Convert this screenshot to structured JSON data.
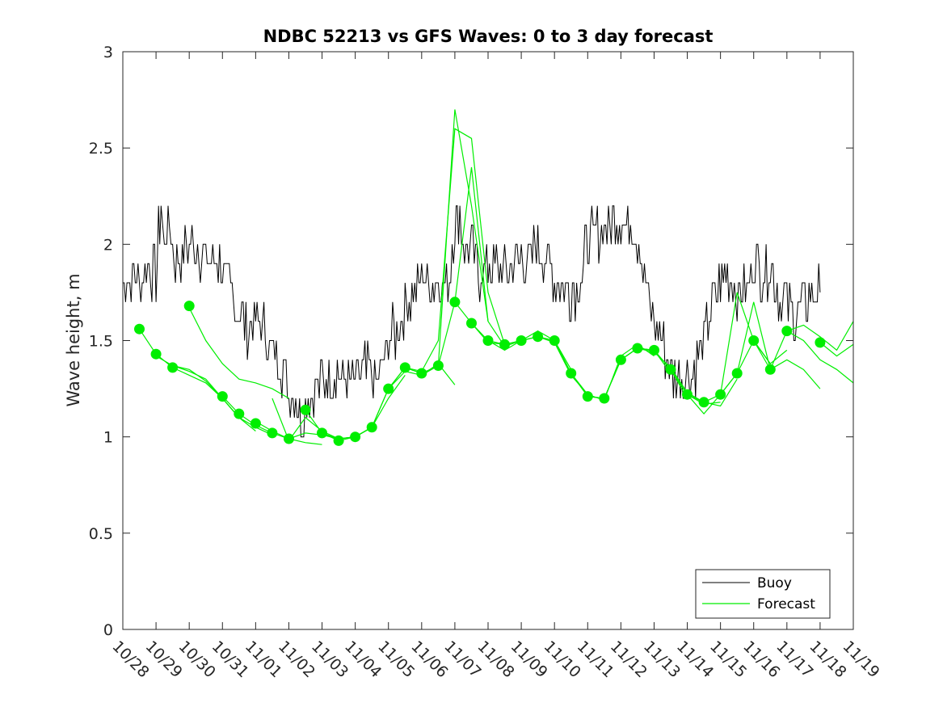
{
  "chart_data": {
    "type": "line",
    "title": "NDBC 52213 vs GFS Waves: 0 to 3 day forecast",
    "xlabel": "",
    "ylabel": "Wave height, m",
    "ylim": [
      0,
      3
    ],
    "yticks": [
      0,
      0.5,
      1,
      1.5,
      2,
      2.5,
      3
    ],
    "ytick_labels": [
      "0",
      "0.5",
      "1",
      "1.5",
      "2",
      "2.5",
      "3"
    ],
    "xlim": [
      0,
      22
    ],
    "xticks": [
      0,
      1,
      2,
      3,
      4,
      5,
      6,
      7,
      8,
      9,
      10,
      11,
      12,
      13,
      14,
      15,
      16,
      17,
      18,
      19,
      20,
      21,
      22
    ],
    "xtick_labels": [
      "10/28",
      "10/29",
      "10/30",
      "10/31",
      "11/01",
      "11/02",
      "11/03",
      "11/04",
      "11/05",
      "11/06",
      "11/07",
      "11/08",
      "11/09",
      "11/10",
      "11/11",
      "11/12",
      "11/13",
      "11/14",
      "11/15",
      "11/16",
      "11/17",
      "11/18",
      "11/19"
    ],
    "legend": {
      "position": "bottom-right",
      "entries": [
        "Buoy",
        "Forecast"
      ]
    },
    "colors": {
      "buoy": "#000000",
      "forecast": "#00ee00",
      "axis": "#262626"
    },
    "series": [
      {
        "name": "Buoy",
        "x": [
          0,
          0.25,
          0.5,
          0.75,
          1.0,
          1.15,
          1.25,
          1.4,
          1.5,
          1.75,
          2.0,
          2.25,
          2.5,
          2.75,
          3.0,
          3.25,
          3.5,
          3.75,
          4.0,
          4.25,
          4.5,
          4.75,
          5.0,
          5.25,
          5.4,
          5.5,
          5.75,
          6.0,
          6.25,
          6.5,
          6.75,
          7.0,
          7.25,
          7.5,
          7.75,
          8.0,
          8.25,
          8.5,
          8.75,
          9.0,
          9.25,
          9.5,
          9.75,
          10.0,
          10.15,
          10.25,
          10.5,
          10.75,
          11.0,
          11.25,
          11.5,
          11.75,
          12.0,
          12.25,
          12.5,
          12.75,
          13.0,
          13.25,
          13.5,
          13.75,
          14.0,
          14.25,
          14.5,
          14.75,
          15.0,
          15.25,
          15.5,
          15.75,
          16.0,
          16.25,
          16.5,
          16.75,
          17.0,
          17.25,
          17.5,
          17.75,
          18.0,
          18.25,
          18.5,
          18.75,
          19.0,
          19.25,
          19.5,
          19.75,
          20.0,
          20.25,
          20.5,
          20.75,
          21.0
        ],
        "values": [
          1.8,
          1.85,
          1.8,
          1.9,
          1.85,
          2.2,
          2.0,
          2.1,
          1.95,
          1.9,
          2.0,
          2.0,
          1.9,
          1.95,
          1.85,
          1.75,
          1.65,
          1.55,
          1.6,
          1.55,
          1.45,
          1.4,
          1.25,
          1.2,
          1.1,
          1.2,
          1.25,
          1.3,
          1.3,
          1.35,
          1.3,
          1.3,
          1.35,
          1.3,
          1.3,
          1.5,
          1.55,
          1.65,
          1.75,
          1.85,
          1.8,
          1.8,
          1.75,
          2.1,
          2.2,
          2.0,
          1.95,
          1.85,
          1.9,
          1.9,
          1.85,
          1.9,
          1.95,
          1.9,
          2.0,
          1.9,
          1.85,
          1.8,
          1.75,
          1.8,
          2.0,
          2.05,
          2.1,
          2.1,
          2.15,
          2.1,
          2.05,
          1.8,
          1.6,
          1.5,
          1.35,
          1.3,
          1.3,
          1.35,
          1.5,
          1.7,
          1.8,
          1.85,
          1.7,
          1.75,
          1.9,
          1.85,
          1.9,
          1.75,
          1.7,
          1.65,
          1.7,
          1.75,
          1.75
        ]
      },
      {
        "name": "Forecast",
        "lines": [
          {
            "x": [
              0.5,
              1,
              1.5,
              2,
              2.5,
              3,
              3.5
            ],
            "values": [
              1.56,
              1.43,
              1.36,
              1.32,
              1.28,
              1.2,
              1.1
            ]
          },
          {
            "x": [
              1,
              1.5,
              2,
              2.5,
              3,
              3.5,
              4
            ],
            "values": [
              1.42,
              1.37,
              1.35,
              1.29,
              1.2,
              1.1,
              1.03
            ]
          },
          {
            "x": [
              1.5,
              2,
              2.5,
              3,
              3.5,
              4,
              4.5
            ],
            "values": [
              1.37,
              1.34,
              1.3,
              1.2,
              1.1,
              1.05,
              1.01
            ]
          },
          {
            "x": [
              2,
              2.5,
              3,
              3.5,
              4,
              4.5,
              5
            ],
            "values": [
              1.67,
              1.5,
              1.38,
              1.3,
              1.28,
              1.25,
              1.2
            ]
          },
          {
            "x": [
              3,
              3.5,
              4,
              4.5,
              5,
              5.5,
              6
            ],
            "values": [
              1.21,
              1.12,
              1.06,
              1.02,
              0.99,
              0.97,
              0.96
            ]
          },
          {
            "x": [
              4,
              4.5,
              5,
              5.5,
              6,
              6.5,
              7
            ],
            "values": [
              1.08,
              1.03,
              0.99,
              1.02,
              1.01,
              0.99,
              1.0
            ]
          },
          {
            "x": [
              4.5,
              5,
              5.5,
              6,
              6.5,
              7,
              7.5
            ],
            "values": [
              1.2,
              0.98,
              1.1,
              1.03,
              0.99,
              1.0,
              1.05
            ]
          },
          {
            "x": [
              5.5,
              6,
              6.5,
              7,
              7.5,
              8,
              8.5
            ],
            "values": [
              1.14,
              1.02,
              0.99,
              1.0,
              1.05,
              1.2,
              1.32
            ]
          },
          {
            "x": [
              6,
              6.5,
              7,
              7.5,
              8,
              8.5,
              9
            ],
            "values": [
              1.02,
              0.98,
              1.0,
              1.05,
              1.25,
              1.36,
              1.33
            ]
          },
          {
            "x": [
              7,
              7.5,
              8,
              8.5,
              9,
              9.5,
              10
            ],
            "values": [
              1.0,
              1.05,
              1.25,
              1.34,
              1.32,
              1.38,
              1.27
            ]
          },
          {
            "x": [
              8,
              8.5,
              9,
              9.5,
              10,
              10.5,
              11
            ],
            "values": [
              1.25,
              1.36,
              1.33,
              1.37,
              2.7,
              2.2,
              1.6
            ]
          },
          {
            "x": [
              8.5,
              9,
              9.5,
              10,
              10.5,
              11,
              11.5
            ],
            "values": [
              1.36,
              1.34,
              1.5,
              2.6,
              2.55,
              1.75,
              1.48
            ]
          },
          {
            "x": [
              9,
              9.5,
              10,
              10.5,
              11,
              11.5,
              12
            ],
            "values": [
              1.32,
              1.37,
              1.7,
              2.4,
              1.6,
              1.47,
              1.5
            ]
          },
          {
            "x": [
              10,
              10.5,
              11,
              11.5,
              12,
              12.5,
              13
            ],
            "values": [
              1.7,
              1.59,
              1.5,
              1.45,
              1.5,
              1.52,
              1.5
            ]
          },
          {
            "x": [
              10.5,
              11,
              11.5,
              12,
              12.5,
              13,
              13.5
            ],
            "values": [
              1.59,
              1.49,
              1.48,
              1.5,
              1.55,
              1.5,
              1.35
            ]
          },
          {
            "x": [
              11,
              11.5,
              12,
              12.5,
              13,
              13.5,
              14
            ],
            "values": [
              1.5,
              1.48,
              1.5,
              1.52,
              1.49,
              1.32,
              1.22
            ]
          },
          {
            "x": [
              12,
              12.5,
              13,
              13.5,
              14,
              14.5,
              15
            ],
            "values": [
              1.5,
              1.52,
              1.5,
              1.33,
              1.21,
              1.2,
              1.4
            ]
          },
          {
            "x": [
              13,
              13.5,
              14,
              14.5,
              15,
              15.5,
              16
            ],
            "values": [
              1.5,
              1.33,
              1.22,
              1.19,
              1.42,
              1.48,
              1.42
            ]
          },
          {
            "x": [
              13.5,
              14,
              14.5,
              15,
              15.5,
              16,
              16.5
            ],
            "values": [
              1.33,
              1.21,
              1.2,
              1.4,
              1.46,
              1.45,
              1.33
            ]
          },
          {
            "x": [
              14,
              14.5,
              15,
              15.5,
              16,
              16.5,
              17
            ],
            "values": [
              1.21,
              1.2,
              1.4,
              1.46,
              1.45,
              1.35,
              1.2
            ]
          },
          {
            "x": [
              15,
              15.5,
              16,
              16.5,
              17,
              17.5,
              18
            ],
            "values": [
              1.4,
              1.46,
              1.45,
              1.35,
              1.22,
              1.17,
              1.18
            ]
          },
          {
            "x": [
              15.5,
              16,
              16.5,
              17,
              17.5,
              18,
              18.5
            ],
            "values": [
              1.46,
              1.44,
              1.36,
              1.23,
              1.18,
              1.16,
              1.3
            ]
          },
          {
            "x": [
              16.5,
              17,
              17.5,
              18,
              18.5,
              19,
              19.5
            ],
            "values": [
              1.35,
              1.22,
              1.12,
              1.22,
              1.75,
              1.5,
              1.38
            ]
          },
          {
            "x": [
              17,
              17.5,
              18,
              18.5,
              19,
              19.5,
              20
            ],
            "values": [
              1.22,
              1.18,
              1.22,
              1.33,
              1.5,
              1.38,
              1.45
            ]
          },
          {
            "x": [
              18,
              18.5,
              19,
              19.5,
              20,
              20.5,
              21
            ],
            "values": [
              1.22,
              1.33,
              1.7,
              1.35,
              1.4,
              1.35,
              1.25
            ]
          },
          {
            "x": [
              19,
              19.5,
              20,
              20.5,
              21,
              21.5,
              22
            ],
            "values": [
              1.5,
              1.35,
              1.55,
              1.5,
              1.4,
              1.35,
              1.28
            ]
          },
          {
            "x": [
              20,
              20.5,
              21,
              21.5,
              22
            ],
            "values": [
              1.55,
              1.58,
              1.52,
              1.45,
              1.6
            ]
          },
          {
            "x": [
              21,
              21.5,
              22
            ],
            "values": [
              1.49,
              1.42,
              1.48
            ]
          }
        ],
        "markers": {
          "x": [
            0.5,
            1,
            1.5,
            2,
            3,
            3.5,
            4,
            4.5,
            5,
            5.5,
            6,
            6.5,
            7,
            7.5,
            8,
            8.5,
            9,
            9.5,
            10,
            10.5,
            11,
            11.5,
            12,
            12.5,
            13,
            13.5,
            14,
            14.5,
            15,
            15.5,
            16,
            16.5,
            17,
            17.5,
            18,
            18.5,
            19,
            19.5,
            20,
            21
          ],
          "values": [
            1.56,
            1.43,
            1.36,
            1.68,
            1.21,
            1.12,
            1.07,
            1.02,
            0.99,
            1.14,
            1.02,
            0.98,
            1.0,
            1.05,
            1.25,
            1.36,
            1.33,
            1.37,
            1.7,
            1.59,
            1.5,
            1.48,
            1.5,
            1.52,
            1.5,
            1.33,
            1.21,
            1.2,
            1.4,
            1.46,
            1.45,
            1.35,
            1.22,
            1.18,
            1.22,
            1.33,
            1.5,
            1.35,
            1.55,
            1.49
          ]
        }
      }
    ]
  }
}
